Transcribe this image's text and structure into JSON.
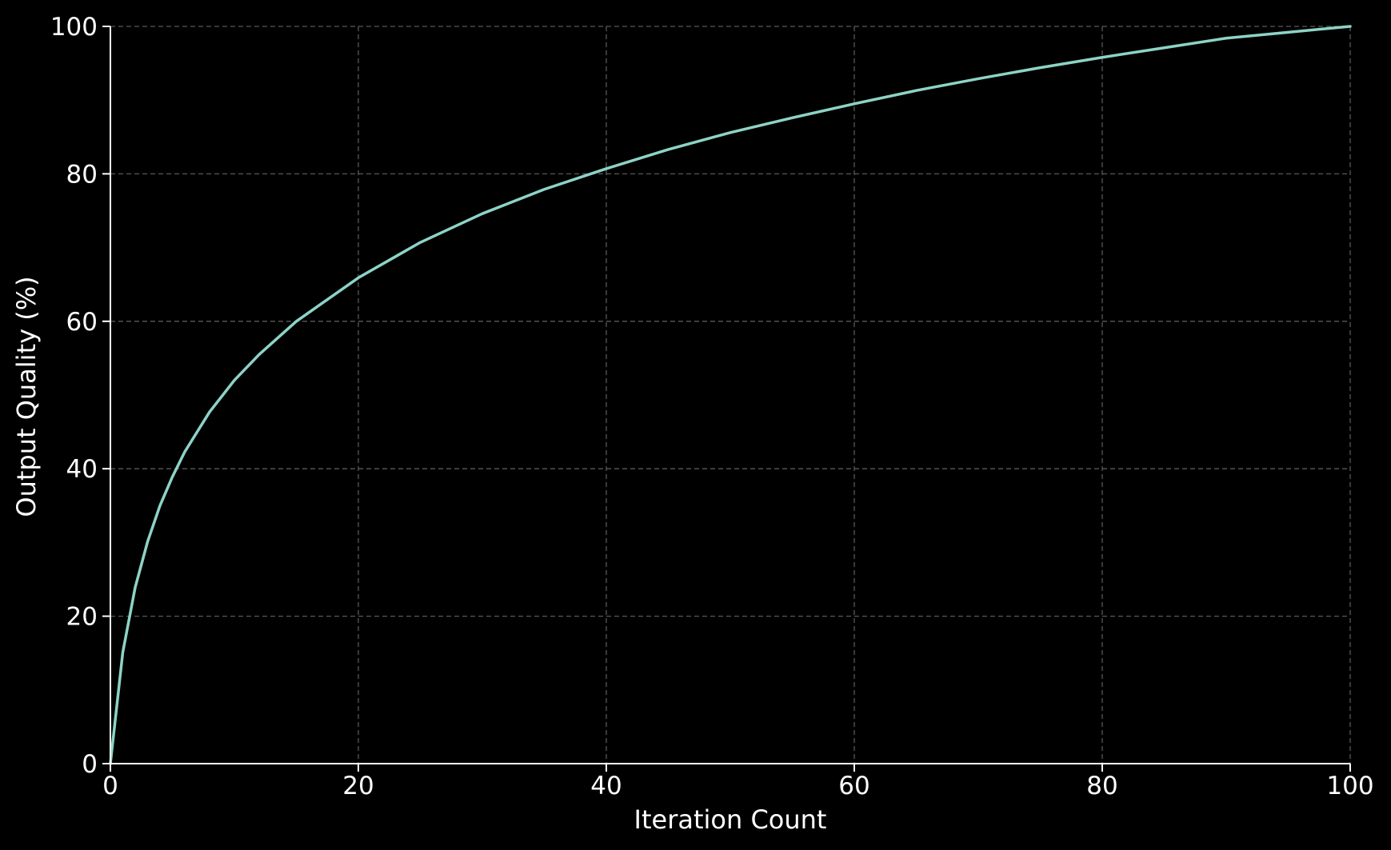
{
  "chart_data": {
    "type": "line",
    "title": "",
    "xlabel": "Iteration Count",
    "ylabel": "Output Quality (%)",
    "xlim": [
      0,
      100
    ],
    "ylim": [
      0,
      100
    ],
    "xticks": [
      0,
      20,
      40,
      60,
      80,
      100
    ],
    "yticks": [
      0,
      20,
      40,
      60,
      80,
      100
    ],
    "xtick_labels": [
      "0",
      "20",
      "40",
      "60",
      "80",
      "100"
    ],
    "ytick_labels": [
      "0",
      "20",
      "40",
      "60",
      "80",
      "100"
    ],
    "grid": true,
    "legend": "none",
    "background_color": "#000000",
    "series": [
      {
        "color": "#8dd3c7",
        "x": [
          0,
          1,
          2,
          3,
          4,
          5,
          6,
          8,
          10,
          12,
          15,
          20,
          25,
          30,
          35,
          40,
          45,
          50,
          55,
          60,
          65,
          70,
          75,
          80,
          85,
          90,
          95,
          100
        ],
        "y": [
          0,
          15.1,
          23.9,
          30.1,
          35.0,
          38.9,
          42.3,
          47.7,
          52.0,
          55.5,
          60.0,
          65.9,
          70.7,
          74.6,
          77.9,
          80.7,
          83.3,
          85.6,
          87.6,
          89.5,
          91.3,
          92.9,
          94.4,
          95.8,
          97.1,
          98.4,
          99.2,
          100.0
        ]
      }
    ]
  }
}
